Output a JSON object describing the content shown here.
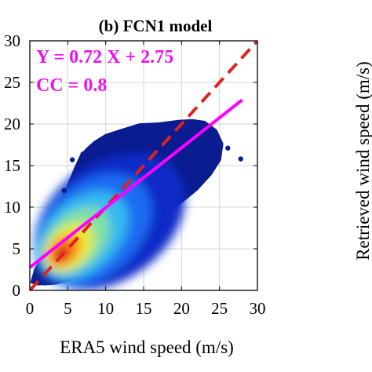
{
  "chart_data": {
    "type": "scatter",
    "title": "(b) FCN1 model",
    "xlabel": "ERA5 wind speed (m/s)",
    "ylabel": "",
    "right_panel_ylabel": "Retrieved wind speed (m/s)",
    "xlim": [
      0,
      30
    ],
    "ylim": [
      0,
      30
    ],
    "x_ticks": [
      "0",
      "5",
      "10",
      "15",
      "20",
      "25",
      "30"
    ],
    "y_ticks": [
      "0",
      "5",
      "10",
      "15",
      "20",
      "25",
      "30"
    ],
    "grid": true,
    "density_colormap": "jet",
    "annotations": {
      "equation": "Y = 0.72 X + 2.75",
      "cc": "CC = 0.8"
    },
    "fit_line": {
      "slope": 0.72,
      "intercept": 2.75,
      "x_range": [
        0,
        28
      ],
      "color": "#ff00ff"
    },
    "reference_line": {
      "slope": 1,
      "intercept": 0,
      "x_range": [
        0,
        30
      ],
      "color": "#dd2222",
      "style": "dashed"
    },
    "outline_points": [
      [
        0.3,
        1.0
      ],
      [
        0.8,
        2.6
      ],
      [
        1.5,
        3.6
      ],
      [
        2.0,
        5.0
      ],
      [
        2.6,
        6.5
      ],
      [
        3.4,
        8.6
      ],
      [
        4.2,
        10.5
      ],
      [
        5.1,
        12.6
      ],
      [
        6.0,
        14.6
      ],
      [
        6.8,
        16.2
      ],
      [
        7.6,
        17.0
      ],
      [
        8.6,
        17.8
      ],
      [
        10.0,
        18.6
      ],
      [
        12.0,
        19.2
      ],
      [
        14.5,
        19.9
      ],
      [
        17.0,
        20.0
      ],
      [
        19.5,
        20.3
      ],
      [
        21.5,
        20.4
      ],
      [
        23.0,
        20.2
      ],
      [
        24.5,
        19.2
      ],
      [
        25.3,
        17.6
      ],
      [
        25.0,
        15.7
      ],
      [
        23.8,
        14.0
      ],
      [
        22.0,
        12.2
      ],
      [
        20.0,
        10.7
      ],
      [
        18.0,
        9.4
      ],
      [
        16.0,
        7.8
      ],
      [
        14.0,
        5.6
      ],
      [
        12.5,
        4.3
      ],
      [
        11.0,
        3.2
      ],
      [
        9.5,
        2.6
      ],
      [
        8.0,
        2.1
      ],
      [
        6.5,
        1.6
      ],
      [
        5.0,
        1.2
      ],
      [
        3.5,
        0.9
      ],
      [
        2.0,
        0.8
      ],
      [
        1.0,
        0.8
      ]
    ],
    "outliers": [
      [
        5.6,
        15.7
      ],
      [
        27.8,
        15.8
      ],
      [
        24.3,
        17.6
      ],
      [
        7.0,
        16.4
      ],
      [
        26.1,
        17.1
      ],
      [
        4.5,
        12.0
      ]
    ],
    "density_layers": [
      {
        "color": "#0a2bc8",
        "center": [
          10.5,
          8.3
        ],
        "rx": 11.0,
        "ry": 7.0,
        "rot": 37
      },
      {
        "color": "#1d6cf2",
        "center": [
          8.3,
          7.3
        ],
        "rx": 8.8,
        "ry": 5.6,
        "rot": 42
      },
      {
        "color": "#34b8f0",
        "center": [
          7.0,
          6.6
        ],
        "rx": 7.0,
        "ry": 4.3,
        "rot": 43
      },
      {
        "color": "#7fe0a8",
        "center": [
          6.1,
          6.0
        ],
        "rx": 5.3,
        "ry": 3.2,
        "rot": 44
      },
      {
        "color": "#e8ec3a",
        "center": [
          5.2,
          5.2
        ],
        "rx": 3.8,
        "ry": 2.4,
        "rot": 44
      },
      {
        "color": "#ff9a1e",
        "center": [
          4.6,
          4.8
        ],
        "rx": 2.6,
        "ry": 1.6,
        "rot": 44
      },
      {
        "color": "#f2301e",
        "center": [
          4.3,
          4.5
        ],
        "rx": 1.5,
        "ry": 0.95,
        "rot": 44
      },
      {
        "color": "#a0150f",
        "center": [
          4.1,
          4.3
        ],
        "rx": 0.7,
        "ry": 0.45,
        "rot": 44
      }
    ]
  }
}
